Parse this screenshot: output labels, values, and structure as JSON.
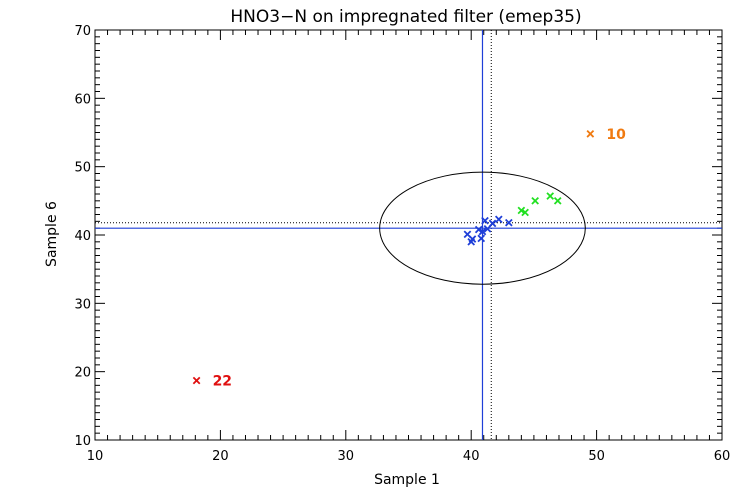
{
  "chart_data": {
    "type": "scatter",
    "title": "HNO3−N on impregnated filter (emep35)",
    "xlabel": "Sample 1",
    "ylabel": "Sample 6",
    "xlim": [
      10,
      60
    ],
    "ylim": [
      10,
      70
    ],
    "xticks": [
      "10",
      "20",
      "30",
      "40",
      "50",
      "60"
    ],
    "yticks": [
      "10",
      "20",
      "30",
      "40",
      "50",
      "60",
      "70"
    ],
    "x_minor_step": 1,
    "y_minor_step": 1,
    "reference_lines": {
      "solid_color": "#1f3fd8",
      "solid_x": 40.9,
      "solid_y": 41.0,
      "dotted_color": "#000000",
      "dotted_x": 41.6,
      "dotted_y": 41.8
    },
    "ellipse": {
      "cx": 40.9,
      "cy": 41.0,
      "rx": 8.2,
      "ry": 8.2,
      "color": "#000000"
    },
    "points": [
      {
        "x": 39.7,
        "y": 40.1,
        "color": "#1f3fd8"
      },
      {
        "x": 40.0,
        "y": 39.0,
        "color": "#1f3fd8"
      },
      {
        "x": 40.1,
        "y": 39.4,
        "color": "#1f3fd8"
      },
      {
        "x": 40.6,
        "y": 40.8,
        "color": "#1f3fd8"
      },
      {
        "x": 40.8,
        "y": 39.5,
        "color": "#1f3fd8"
      },
      {
        "x": 40.9,
        "y": 40.5,
        "color": "#1f3fd8"
      },
      {
        "x": 41.1,
        "y": 42.1,
        "color": "#1f3fd8"
      },
      {
        "x": 41.3,
        "y": 40.9,
        "color": "#1f3fd8"
      },
      {
        "x": 41.7,
        "y": 41.7,
        "color": "#1f3fd8"
      },
      {
        "x": 42.2,
        "y": 42.3,
        "color": "#1f3fd8"
      },
      {
        "x": 43.0,
        "y": 41.8,
        "color": "#1f3fd8"
      },
      {
        "x": 44.0,
        "y": 43.6,
        "color": "#22e022"
      },
      {
        "x": 44.3,
        "y": 43.3,
        "color": "#22e022"
      },
      {
        "x": 45.1,
        "y": 45.0,
        "color": "#22e022"
      },
      {
        "x": 46.3,
        "y": 45.7,
        "color": "#22e022"
      },
      {
        "x": 46.9,
        "y": 45.0,
        "color": "#22e022"
      },
      {
        "x": 49.5,
        "y": 54.8,
        "color": "#f07a10",
        "label": "10"
      },
      {
        "x": 18.1,
        "y": 18.7,
        "color": "#e01010",
        "label": "22"
      }
    ]
  }
}
